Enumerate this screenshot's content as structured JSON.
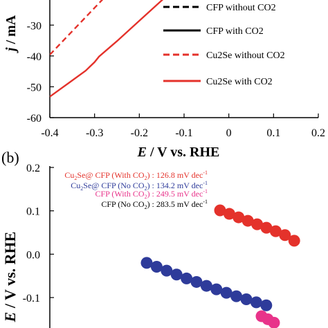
{
  "chart_data": [
    {
      "panel_label": "",
      "type": "line",
      "xlabel_italic": "E",
      "xlabel_rest": " / V vs. RHE",
      "ylabel_italic": "j",
      "ylabel_rest": " / mA",
      "xlim": [
        -0.4,
        0.2
      ],
      "ylim": [
        -60,
        -20
      ],
      "x_ticks": [
        "-0.4",
        "-0.3",
        "-0.2",
        "-0.1",
        "0",
        "0.1",
        "0.2"
      ],
      "y_ticks": [
        "-30",
        "-40",
        "-50",
        "-60"
      ],
      "grid": false,
      "legend_position": "right",
      "series": [
        {
          "name": "CFP without CO2",
          "color": "#000000",
          "dash": true,
          "x": [],
          "y": []
        },
        {
          "name": "CFP with CO2",
          "color": "#000000",
          "dash": false,
          "x": [],
          "y": []
        },
        {
          "name": "Cu2Se without CO2",
          "color": "#e4322b",
          "dash": true,
          "x": [
            -0.4,
            -0.375,
            -0.35,
            -0.325,
            -0.3,
            -0.275,
            -0.25
          ],
          "y": [
            -39.6,
            -35.8,
            -32.0,
            -28.2,
            -24.4,
            -20.6,
            -16.8
          ]
        },
        {
          "name": "Cu2Se with CO2",
          "color": "#e4322b",
          "dash": false,
          "x": [
            -0.4,
            -0.36,
            -0.32,
            -0.3,
            -0.29,
            -0.25,
            -0.2,
            -0.15,
            -0.12
          ],
          "y": [
            -53.2,
            -49.0,
            -44.8,
            -42.0,
            -40.2,
            -35.2,
            -28.6,
            -22.0,
            -18.0
          ]
        }
      ]
    },
    {
      "panel_label": "(b)",
      "type": "scatter",
      "xlabel": "",
      "ylabel_italic": "E",
      "ylabel_rest": " / V vs. RHE",
      "ylim": [
        -0.15,
        0.2
      ],
      "y_ticks": [
        "0.2",
        "0.1",
        "0.0",
        "-0.1"
      ],
      "grid": false,
      "legend_position": "top-left",
      "series": [
        {
          "name": "Cu2Se@ CFP (With CO2) : 126.8 mV dec-1",
          "label_parts": {
            "a": "Cu",
            "a_sub": "2",
            "b": "Se@ CFP (With CO",
            "b_sub": "2",
            "c": ") : 126.8 mV dec",
            "c_sup": "-1"
          },
          "color": "#e4322b",
          "x": [
            1,
            2,
            3,
            4,
            5,
            6,
            7,
            8,
            9
          ],
          "y": [
            0.101,
            0.093,
            0.085,
            0.077,
            0.069,
            0.061,
            0.053,
            0.044,
            0.031
          ]
        },
        {
          "name": "Cu2Se@ CFP (No CO2) : 134.2 mV dec-1",
          "label_parts": {
            "a": "Cu",
            "a_sub": "2",
            "b": "Se@ CFP (No CO",
            "b_sub": "2",
            "c": ") : 134.2 mV dec",
            "c_sup": "-1"
          },
          "color": "#2e3b9a",
          "x": [
            1,
            2,
            3,
            4,
            5,
            6,
            7,
            8,
            9,
            10,
            11,
            12,
            13
          ],
          "y": [
            -0.02,
            -0.029,
            -0.038,
            -0.047,
            -0.056,
            -0.064,
            -0.073,
            -0.081,
            -0.089,
            -0.097,
            -0.104,
            -0.111,
            -0.118
          ]
        },
        {
          "name": "CFP (With CO2) : 249.5 mV dec-1",
          "label_parts": {
            "a": "",
            "a_sub": "",
            "b": "CFP (With CO",
            "b_sub": "2",
            "c": ") : 249.5 mV dec",
            "c_sup": "-1"
          },
          "color": "#e8338a",
          "x": [
            1,
            2,
            3
          ],
          "y": [
            -0.143,
            -0.15,
            -0.158
          ]
        },
        {
          "name": "CFP (No CO2) : 283.5 mV dec-1",
          "label_parts": {
            "a": "",
            "a_sub": "",
            "b": "CFP (No CO",
            "b_sub": "2",
            "c": ") : 283.5 mV dec",
            "c_sup": "-1"
          },
          "color": "#000000",
          "x": [],
          "y": []
        }
      ]
    }
  ]
}
